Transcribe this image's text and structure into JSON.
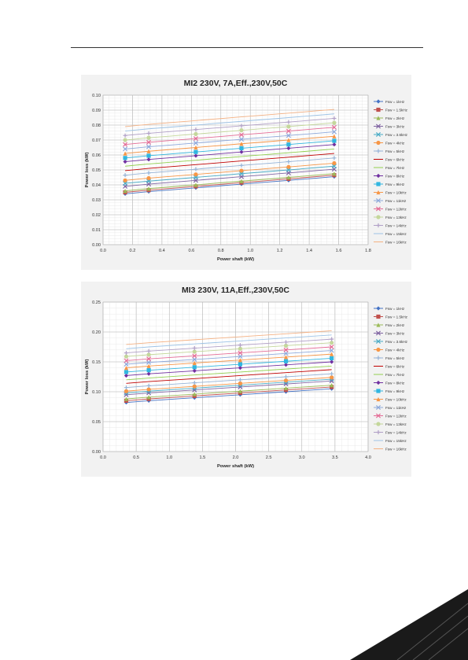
{
  "chart_data": [
    {
      "type": "line",
      "title": "MI2 230V, 7A,Eff.,230V,50C",
      "xlabel": "Power shaft (kW)",
      "ylabel": "Power loss (kW)",
      "xlim": [
        0.0,
        1.8
      ],
      "ylim": [
        0.0,
        0.1
      ],
      "xticks": [
        "0.0",
        "0.2",
        "0.4",
        "0.6",
        "0.8",
        "1.0",
        "1.2",
        "1.4",
        "1.6",
        "1.8"
      ],
      "yticks": [
        "0.00",
        "0.01",
        "0.02",
        "0.03",
        "0.04",
        "0.05",
        "0.06",
        "0.07",
        "0.08",
        "0.09",
        "0.10"
      ],
      "grid": true,
      "legend_position": "right",
      "x": [
        0.15,
        0.31,
        0.63,
        0.94,
        1.26,
        1.57
      ],
      "series": [
        {
          "name": "Fsw = 1kHz",
          "color": "#4472c4",
          "marker": "diamond",
          "values": [
            0.034,
            0.0355,
            0.038,
            0.0405,
            0.043,
            0.0455
          ]
        },
        {
          "name": "Fsw = 1.5kHz",
          "color": "#c0504d",
          "marker": "square",
          "values": [
            0.035,
            0.0365,
            0.039,
            0.0415,
            0.044,
            0.0465
          ]
        },
        {
          "name": "Fsw = 2kHz",
          "color": "#9bbb59",
          "marker": "triangle",
          "values": [
            0.036,
            0.0375,
            0.04,
            0.0425,
            0.045,
            0.0475
          ]
        },
        {
          "name": "Fsw = 3kHz",
          "color": "#8064a2",
          "marker": "x",
          "values": [
            0.039,
            0.0405,
            0.043,
            0.0455,
            0.048,
            0.0505
          ]
        },
        {
          "name": "Fsw = 3.6kHz",
          "color": "#4bacc6",
          "marker": "x",
          "values": [
            0.041,
            0.0425,
            0.045,
            0.0475,
            0.05,
            0.0525
          ]
        },
        {
          "name": "Fsw = 4kHz",
          "color": "#f79646",
          "marker": "circle",
          "values": [
            0.043,
            0.0445,
            0.047,
            0.0495,
            0.052,
            0.0545
          ]
        },
        {
          "name": "Fsw = 5kHz",
          "color": "#95b3d7",
          "marker": "plus",
          "values": [
            0.0465,
            0.048,
            0.0505,
            0.053,
            0.0555,
            0.058
          ]
        },
        {
          "name": "Fsw = 6kHz",
          "color": "#c00000",
          "marker": "line",
          "values": [
            0.0495,
            0.051,
            0.0535,
            0.056,
            0.0585,
            0.061
          ]
        },
        {
          "name": "Fsw = 7kHz",
          "color": "#92d050",
          "marker": "line",
          "values": [
            0.0525,
            0.054,
            0.0565,
            0.059,
            0.0615,
            0.064
          ]
        },
        {
          "name": "Fsw = 8kHz",
          "color": "#7030a0",
          "marker": "diamond",
          "values": [
            0.0555,
            0.057,
            0.0595,
            0.062,
            0.0645,
            0.067
          ]
        },
        {
          "name": "Fsw = 9kHz",
          "color": "#31b6e0",
          "marker": "square",
          "values": [
            0.058,
            0.0595,
            0.062,
            0.0645,
            0.067,
            0.0695
          ]
        },
        {
          "name": "Fsw = 10kHz",
          "color": "#f79646",
          "marker": "triangle",
          "values": [
            0.061,
            0.0625,
            0.065,
            0.0675,
            0.07,
            0.0725
          ]
        },
        {
          "name": "Fsw = 11kHz",
          "color": "#8ea9db",
          "marker": "x",
          "values": [
            0.064,
            0.0655,
            0.068,
            0.0705,
            0.073,
            0.0755
          ]
        },
        {
          "name": "Fsw = 12kHz",
          "color": "#e46c96",
          "marker": "x",
          "values": [
            0.067,
            0.0685,
            0.071,
            0.0735,
            0.076,
            0.0785
          ]
        },
        {
          "name": "Fsw = 13kHz",
          "color": "#c4d79b",
          "marker": "circle",
          "values": [
            0.07,
            0.0715,
            0.074,
            0.0765,
            0.079,
            0.0815
          ]
        },
        {
          "name": "Fsw = 14kHz",
          "color": "#b1a0c7",
          "marker": "plus",
          "values": [
            0.073,
            0.0745,
            0.077,
            0.0795,
            0.082,
            0.0845
          ]
        },
        {
          "name": "Fsw = 15kHz",
          "color": "#9dc3e6",
          "marker": "line",
          "values": [
            0.076,
            0.0775,
            0.08,
            0.0825,
            0.085,
            0.0875
          ]
        },
        {
          "name": "Fsw = 16kHz",
          "color": "#f4b183",
          "marker": "line",
          "values": [
            0.079,
            0.0805,
            0.083,
            0.0855,
            0.088,
            0.0905
          ]
        }
      ]
    },
    {
      "type": "line",
      "title": "MI3 230V, 11A,Eff.,230V,50C",
      "xlabel": "Power shaft (kW)",
      "ylabel": "Power loss (kW)",
      "xlim": [
        0.0,
        4.0
      ],
      "ylim": [
        0.0,
        0.25
      ],
      "xticks": [
        "0.0",
        "0.5",
        "1.0",
        "1.5",
        "2.0",
        "2.5",
        "3.0",
        "3.5",
        "4.0"
      ],
      "yticks": [
        "0.00",
        "0.05",
        "0.10",
        "0.15",
        "0.20",
        "0.25"
      ],
      "grid": true,
      "legend_position": "right",
      "x": [
        0.35,
        0.69,
        1.38,
        2.07,
        2.76,
        3.45
      ],
      "series": [
        {
          "name": "Fsw = 1kHz",
          "color": "#4472c4",
          "marker": "diamond",
          "values": [
            0.082,
            0.085,
            0.09,
            0.095,
            0.1,
            0.105
          ]
        },
        {
          "name": "Fsw = 1.5kHz",
          "color": "#c0504d",
          "marker": "square",
          "values": [
            0.085,
            0.088,
            0.093,
            0.098,
            0.103,
            0.108
          ]
        },
        {
          "name": "Fsw = 2kHz",
          "color": "#9bbb59",
          "marker": "triangle",
          "values": [
            0.088,
            0.091,
            0.096,
            0.101,
            0.106,
            0.111
          ]
        },
        {
          "name": "Fsw = 3kHz",
          "color": "#8064a2",
          "marker": "x",
          "values": [
            0.095,
            0.098,
            0.103,
            0.108,
            0.113,
            0.118
          ]
        },
        {
          "name": "Fsw = 3.6kHz",
          "color": "#4bacc6",
          "marker": "x",
          "values": [
            0.098,
            0.101,
            0.106,
            0.111,
            0.116,
            0.121
          ]
        },
        {
          "name": "Fsw = 4kHz",
          "color": "#f79646",
          "marker": "circle",
          "values": [
            0.101,
            0.104,
            0.109,
            0.114,
            0.119,
            0.124
          ]
        },
        {
          "name": "Fsw = 5kHz",
          "color": "#95b3d7",
          "marker": "plus",
          "values": [
            0.107,
            0.11,
            0.115,
            0.12,
            0.125,
            0.13
          ]
        },
        {
          "name": "Fsw = 6kHz",
          "color": "#c00000",
          "marker": "line",
          "values": [
            0.114,
            0.117,
            0.122,
            0.127,
            0.132,
            0.137
          ]
        },
        {
          "name": "Fsw = 7kHz",
          "color": "#92d050",
          "marker": "line",
          "values": [
            0.12,
            0.123,
            0.128,
            0.133,
            0.138,
            0.143
          ]
        },
        {
          "name": "Fsw = 8kHz",
          "color": "#7030a0",
          "marker": "diamond",
          "values": [
            0.127,
            0.13,
            0.135,
            0.14,
            0.145,
            0.15
          ]
        },
        {
          "name": "Fsw = 9kHz",
          "color": "#31b6e0",
          "marker": "square",
          "values": [
            0.133,
            0.136,
            0.141,
            0.146,
            0.151,
            0.156
          ]
        },
        {
          "name": "Fsw = 10kHz",
          "color": "#f79646",
          "marker": "triangle",
          "values": [
            0.14,
            0.143,
            0.148,
            0.153,
            0.158,
            0.163
          ]
        },
        {
          "name": "Fsw = 11kHz",
          "color": "#8ea9db",
          "marker": "x",
          "values": [
            0.146,
            0.149,
            0.154,
            0.159,
            0.164,
            0.169
          ]
        },
        {
          "name": "Fsw = 12kHz",
          "color": "#e46c96",
          "marker": "x",
          "values": [
            0.152,
            0.155,
            0.16,
            0.165,
            0.17,
            0.175
          ]
        },
        {
          "name": "Fsw = 13kHz",
          "color": "#c4d79b",
          "marker": "circle",
          "values": [
            0.159,
            0.162,
            0.167,
            0.172,
            0.177,
            0.182
          ]
        },
        {
          "name": "Fsw = 14kHz",
          "color": "#b1a0c7",
          "marker": "plus",
          "values": [
            0.165,
            0.168,
            0.173,
            0.178,
            0.183,
            0.188
          ]
        },
        {
          "name": "Fsw = 15kHz",
          "color": "#9dc3e6",
          "marker": "line",
          "values": [
            0.172,
            0.175,
            0.18,
            0.185,
            0.19,
            0.195
          ]
        },
        {
          "name": "Fsw = 16kHz",
          "color": "#f4b183",
          "marker": "line",
          "values": [
            0.179,
            0.182,
            0.187,
            0.192,
            0.197,
            0.202
          ]
        }
      ]
    }
  ]
}
